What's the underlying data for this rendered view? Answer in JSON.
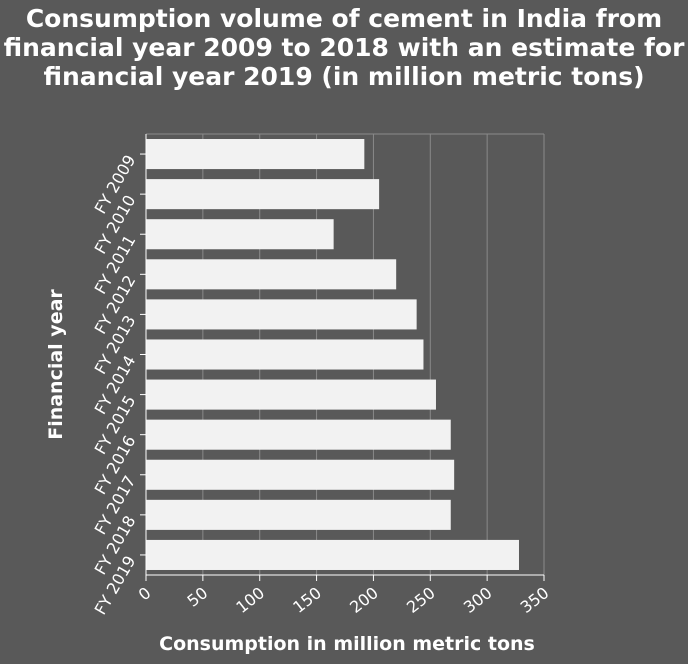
{
  "chart_data": {
    "type": "bar",
    "orientation": "horizontal",
    "title": "Consumption volume of cement in India from financial year 2009 to 2018 with an estimate for financial year 2019 (in million metric tons)",
    "xlabel": "Consumption in million metric tons",
    "ylabel": "Financial year",
    "categories": [
      "FY 2009",
      "FY 2010",
      "FY 2011",
      "FY 2012",
      "FY 2013",
      "FY 2014",
      "FY 2015",
      "FY 2016",
      "FY 2017",
      "FY 2018",
      "FY 2019"
    ],
    "values": [
      192,
      205,
      165,
      220,
      238,
      244,
      255,
      268,
      271,
      268,
      328
    ],
    "xlim": [
      0,
      350
    ],
    "xticks": [
      0,
      50,
      100,
      150,
      200,
      250,
      300,
      350
    ],
    "grid": "vertical",
    "colors": {
      "background": "#595959",
      "bar": "#f2f2f2",
      "text": "#ffffff",
      "grid": "#8a8a8a"
    }
  }
}
